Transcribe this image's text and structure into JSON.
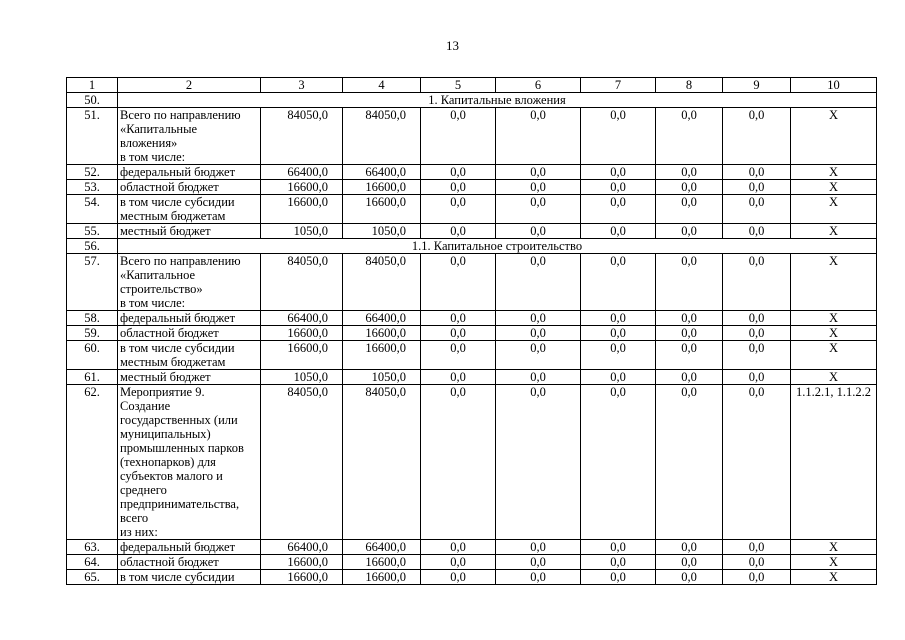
{
  "page_number": "13",
  "table": {
    "header": [
      "1",
      "2",
      "3",
      "4",
      "5",
      "6",
      "7",
      "8",
      "9",
      "10"
    ],
    "rows": [
      [
        "50.",
        "1. Капитальные вложения"
      ],
      [
        "51.",
        "Всего по направлению\n«Капитальные\nвложения»\nв том числе:",
        "84050,0",
        "84050,0",
        "0,0",
        "0,0",
        "0,0",
        "0,0",
        "0,0",
        "X"
      ],
      [
        "52.",
        "федеральный бюджет",
        "66400,0",
        "66400,0",
        "0,0",
        "0,0",
        "0,0",
        "0,0",
        "0,0",
        "X"
      ],
      [
        "53.",
        "областной бюджет",
        "16600,0",
        "16600,0",
        "0,0",
        "0,0",
        "0,0",
        "0,0",
        "0,0",
        "X"
      ],
      [
        "54.",
        "в том числе субсидии\nместным бюджетам",
        "16600,0",
        "16600,0",
        "0,0",
        "0,0",
        "0,0",
        "0,0",
        "0,0",
        "X"
      ],
      [
        "55.",
        "местный бюджет",
        "1050,0",
        "1050,0",
        "0,0",
        "0,0",
        "0,0",
        "0,0",
        "0,0",
        "X"
      ],
      [
        "56.",
        "1.1. Капитальное строительство"
      ],
      [
        "57.",
        "Всего по направлению\n«Капитальное\nстроительство»\nв том числе:",
        "84050,0",
        "84050,0",
        "0,0",
        "0,0",
        "0,0",
        "0,0",
        "0,0",
        "X"
      ],
      [
        "58.",
        "федеральный бюджет",
        "66400,0",
        "66400,0",
        "0,0",
        "0,0",
        "0,0",
        "0,0",
        "0,0",
        "X"
      ],
      [
        "59.",
        "областной бюджет",
        "16600,0",
        "16600,0",
        "0,0",
        "0,0",
        "0,0",
        "0,0",
        "0,0",
        "X"
      ],
      [
        "60.",
        "в том числе субсидии\nместным бюджетам",
        "16600,0",
        "16600,0",
        "0,0",
        "0,0",
        "0,0",
        "0,0",
        "0,0",
        "X"
      ],
      [
        "61.",
        "местный бюджет",
        "1050,0",
        "1050,0",
        "0,0",
        "0,0",
        "0,0",
        "0,0",
        "0,0",
        "X"
      ],
      [
        "62.",
        "Мероприятие 9.\nСоздание\nгосударственных (или\nмуниципальных)\nпромышленных парков\n(технопарков) для\nсубъектов малого и\nсреднего\nпредпринимательства,\nвсего\nиз них:",
        "84050,0",
        "84050,0",
        "0,0",
        "0,0",
        "0,0",
        "0,0",
        "0,0",
        "1.1.2.1, 1.1.2.2"
      ],
      [
        "63.",
        "федеральный бюджет",
        "66400,0",
        "66400,0",
        "0,0",
        "0,0",
        "0,0",
        "0,0",
        "0,0",
        "X"
      ],
      [
        "64.",
        "областной бюджет",
        "16600,0",
        "16600,0",
        "0,0",
        "0,0",
        "0,0",
        "0,0",
        "0,0",
        "X"
      ],
      [
        "65.",
        "в том числе субсидии",
        "16600,0",
        "16600,0",
        "0,0",
        "0,0",
        "0,0",
        "0,0",
        "0,0",
        "X"
      ]
    ]
  }
}
